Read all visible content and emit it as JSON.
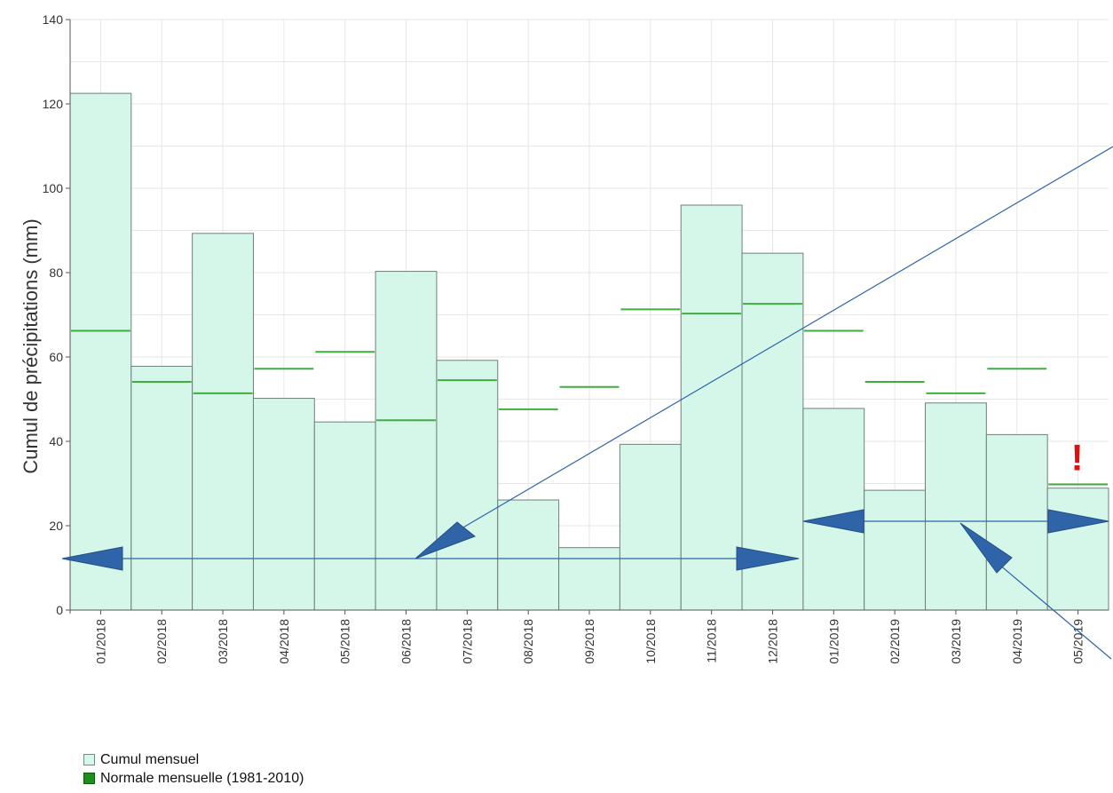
{
  "chart_data": {
    "type": "bar",
    "ylabel": "Cumul de précipitations (mm)",
    "ylim": [
      0,
      140
    ],
    "yticks": [
      0,
      20,
      40,
      60,
      80,
      100,
      120,
      140
    ],
    "grid": true,
    "categories": [
      "01/2018",
      "02/2018",
      "03/2018",
      "04/2018",
      "05/2018",
      "06/2018",
      "07/2018",
      "08/2018",
      "09/2018",
      "10/2018",
      "11/2018",
      "12/2018",
      "01/2019",
      "02/2019",
      "03/2019",
      "04/2019",
      "05/2019"
    ],
    "series": [
      {
        "name": "Cumul mensuel",
        "values": [
          122.5,
          57.8,
          89.3,
          50.2,
          44.6,
          80.3,
          59.2,
          26.1,
          14.8,
          39.3,
          96.0,
          84.6,
          47.8,
          28.4,
          49.1,
          41.6,
          28.9
        ]
      },
      {
        "name": "Normale mensuelle (1981-2010)",
        "values": [
          66.2,
          54.1,
          51.4,
          57.2,
          61.2,
          45.0,
          54.5,
          47.6,
          52.9,
          71.3,
          70.3,
          72.6,
          66.2,
          54.1,
          51.4,
          57.2,
          29.8
        ]
      }
    ],
    "annotations": [
      {
        "text": "!",
        "category": "05/2019",
        "value": 34
      }
    ],
    "colors": {
      "bar_fill": "#d4f7ea",
      "bar_stroke": "#6f7f7a",
      "normal_line": "#3fae3f",
      "annotation": "#e01010",
      "arrow": "#2f64a8",
      "grid": "#e6e6e6"
    }
  },
  "legend": {
    "items": [
      {
        "label": "Cumul mensuel"
      },
      {
        "label": "Normale mensuelle (1981-2010)"
      }
    ]
  }
}
